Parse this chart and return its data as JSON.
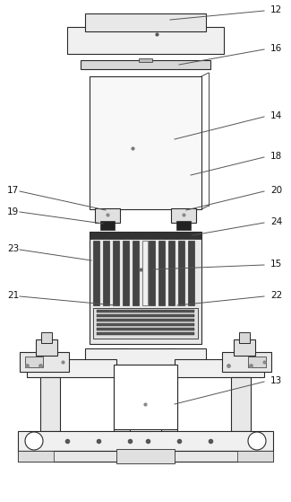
{
  "bg_color": "#ffffff",
  "lc": "#2a2a2a",
  "lw": 0.8
}
